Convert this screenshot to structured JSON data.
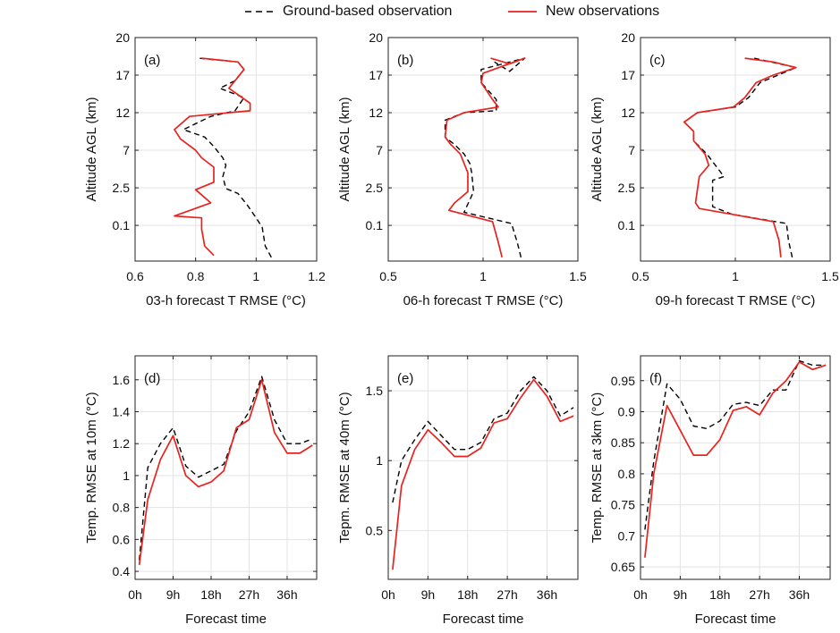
{
  "legend": {
    "ground_label": "Ground-based observation",
    "new_label": "New observations",
    "ground_color": "#000000",
    "new_color": "#e8231f"
  },
  "chart_data": [
    {
      "type": "line",
      "panel": "(a)",
      "orientation": "vertical-profile",
      "xlabel": "03-h forecast T RMSE (°C)",
      "ylabel": "Altitude AGL (km)",
      "xlim": [
        0.6,
        1.2
      ],
      "xticks": [
        0.6,
        0.8,
        1,
        1.2
      ],
      "xtick_labels": [
        "0.6",
        "0.8",
        "1",
        "1.2"
      ],
      "yticks": [
        0,
        1,
        2,
        3,
        4,
        5
      ],
      "ytick_labels": [
        "0.1",
        "2.5",
        "7",
        "12",
        "17",
        "20"
      ],
      "ylim": [
        -0.95,
        5
      ],
      "series": [
        {
          "name": "Ground-based observation",
          "style": "dashed",
          "color": "#000000",
          "x": [
            1.05,
            1.03,
            1.02,
            1.0,
            0.97,
            0.94,
            0.9,
            0.89,
            0.9,
            0.89,
            0.86,
            0.83,
            0.76,
            0.85,
            0.93,
            0.96,
            0.88,
            0.93,
            0.96,
            0.94,
            0.81
          ],
          "y": [
            -0.85,
            -0.55,
            -0.05,
            0.2,
            0.55,
            0.85,
            0.98,
            1.3,
            1.6,
            1.8,
            2.1,
            2.35,
            2.55,
            2.9,
            3.05,
            3.4,
            3.65,
            3.85,
            4.15,
            4.35,
            4.45
          ]
        },
        {
          "name": "New observations",
          "style": "solid",
          "color": "#e8231f",
          "x": [
            0.86,
            0.83,
            0.82,
            0.82,
            0.73,
            0.85,
            0.8,
            0.86,
            0.86,
            0.82,
            0.8,
            0.75,
            0.73,
            0.78,
            0.98,
            0.98,
            0.91,
            0.93,
            0.96,
            0.94,
            0.82
          ],
          "y": [
            -0.8,
            -0.55,
            -0.1,
            0.2,
            0.25,
            0.6,
            0.95,
            1.15,
            1.55,
            1.8,
            2.0,
            2.3,
            2.55,
            2.9,
            3.05,
            3.25,
            3.65,
            3.85,
            4.15,
            4.35,
            4.45
          ]
        }
      ]
    },
    {
      "type": "line",
      "panel": "(b)",
      "orientation": "vertical-profile",
      "xlabel": "06-h forecast T RMSE (°C)",
      "ylabel": "Altitude AGL (km)",
      "xlim": [
        0.5,
        1.5
      ],
      "xticks": [
        0.5,
        1,
        1.5
      ],
      "xtick_labels": [
        "0.5",
        "1",
        "1.5"
      ],
      "yticks": [
        0,
        1,
        2,
        3,
        4,
        5
      ],
      "ytick_labels": [
        "0.1",
        "2.5",
        "7",
        "12",
        "17",
        "20"
      ],
      "ylim": [
        -0.95,
        5
      ],
      "series": [
        {
          "name": "Ground-based observation",
          "style": "dashed",
          "color": "#000000",
          "x": [
            1.2,
            1.18,
            1.15,
            0.9,
            0.95,
            0.94,
            0.93,
            0.9,
            0.85,
            0.8,
            0.8,
            0.9,
            1.07,
            1.07,
            0.99,
            0.99,
            1.22,
            1.14,
            1.06
          ],
          "y": [
            -0.85,
            -0.45,
            0.05,
            0.35,
            0.9,
            1.4,
            1.65,
            1.9,
            2.15,
            2.35,
            2.8,
            3.0,
            3.05,
            3.35,
            3.8,
            4.15,
            4.45,
            4.1,
            4.35
          ]
        },
        {
          "name": "New observations",
          "style": "solid",
          "color": "#e8231f",
          "x": [
            1.1,
            1.08,
            1.05,
            0.82,
            0.85,
            0.92,
            0.92,
            0.88,
            0.83,
            0.8,
            0.81,
            0.9,
            1.08,
            1.05,
            0.99,
            1.0,
            1.22,
            1.14,
            1.04
          ],
          "y": [
            -0.85,
            -0.45,
            0.1,
            0.4,
            0.6,
            0.9,
            1.4,
            1.9,
            2.15,
            2.35,
            2.8,
            3.0,
            3.15,
            3.35,
            3.8,
            4.05,
            4.45,
            4.3,
            4.45
          ]
        }
      ]
    },
    {
      "type": "line",
      "panel": "(c)",
      "orientation": "vertical-profile",
      "xlabel": "09-h forecast T RMSE (°C)",
      "ylabel": "Altitude AGL (km)",
      "xlim": [
        0.5,
        1.5
      ],
      "xticks": [
        0.5,
        1,
        1.5
      ],
      "xtick_labels": [
        "0.5",
        "1",
        "1.5"
      ],
      "yticks": [
        0,
        1,
        2,
        3,
        4,
        5
      ],
      "ytick_labels": [
        "0.1",
        "2.5",
        "7",
        "12",
        "17",
        "20"
      ],
      "ylim": [
        -0.95,
        5
      ],
      "series": [
        {
          "name": "Ground-based observation",
          "style": "dashed",
          "color": "#000000",
          "x": [
            1.3,
            1.28,
            1.27,
            0.98,
            0.88,
            0.88,
            0.94,
            0.85,
            0.78,
            0.78,
            0.73,
            0.8,
            1.0,
            1.07,
            1.13,
            1.32,
            1.1
          ],
          "y": [
            -0.85,
            -0.4,
            0.05,
            0.3,
            0.5,
            1.2,
            1.3,
            1.9,
            2.25,
            2.5,
            2.75,
            3.0,
            3.15,
            3.4,
            3.8,
            4.2,
            4.45
          ]
        },
        {
          "name": "New observations",
          "style": "solid",
          "color": "#e8231f",
          "x": [
            1.24,
            1.23,
            1.2,
            0.81,
            0.79,
            0.81,
            0.86,
            0.84,
            0.78,
            0.78,
            0.73,
            0.8,
            0.99,
            1.05,
            1.11,
            1.2,
            1.32,
            1.2,
            1.05
          ],
          "y": [
            -0.85,
            -0.4,
            0.1,
            0.45,
            0.6,
            1.3,
            1.6,
            1.9,
            2.25,
            2.5,
            2.75,
            3.0,
            3.15,
            3.4,
            3.8,
            4.0,
            4.2,
            4.35,
            4.45
          ]
        }
      ]
    },
    {
      "type": "line",
      "panel": "(d)",
      "xlabel": "Forecast time",
      "ylabel": "Temp. RMSE at 10m (°C)",
      "xlim": [
        0,
        43
      ],
      "xticks": [
        0,
        9,
        18,
        27,
        36
      ],
      "xtick_labels": [
        "0h",
        "9h",
        "18h",
        "27h",
        "36h"
      ],
      "ylim": [
        0.35,
        1.75
      ],
      "yticks": [
        0.4,
        0.6,
        0.8,
        1.0,
        1.2,
        1.4,
        1.6
      ],
      "ytick_labels": [
        "0.4",
        "0.6",
        "0.8",
        "1",
        "1.2",
        "1.4",
        "1.6"
      ],
      "series": [
        {
          "name": "Ground-based observation",
          "style": "dashed",
          "color": "#000000",
          "x": [
            1,
            3,
            6,
            9,
            12,
            15,
            18,
            21,
            24,
            27,
            30,
            33,
            36,
            39,
            42
          ],
          "y": [
            0.47,
            1.05,
            1.2,
            1.3,
            1.06,
            0.99,
            1.03,
            1.07,
            1.28,
            1.4,
            1.62,
            1.35,
            1.2,
            1.2,
            1.23
          ]
        },
        {
          "name": "New observations",
          "style": "solid",
          "color": "#e8231f",
          "x": [
            1,
            3,
            6,
            9,
            12,
            15,
            18,
            21,
            24,
            27,
            30,
            33,
            36,
            39,
            42
          ],
          "y": [
            0.44,
            0.85,
            1.1,
            1.25,
            1.0,
            0.93,
            0.96,
            1.03,
            1.3,
            1.35,
            1.6,
            1.27,
            1.14,
            1.14,
            1.19
          ]
        }
      ]
    },
    {
      "type": "line",
      "panel": "(e)",
      "xlabel": "Forecast time",
      "ylabel": "Tepm. RMSE at 40m (°C)",
      "xlim": [
        0,
        43
      ],
      "xticks": [
        0,
        9,
        18,
        27,
        36
      ],
      "xtick_labels": [
        "0h",
        "9h",
        "18h",
        "27h",
        "36h"
      ],
      "ylim": [
        0.15,
        1.75
      ],
      "yticks": [
        0.5,
        1.0,
        1.5
      ],
      "ytick_labels": [
        "0.5",
        "1",
        "1.5"
      ],
      "series": [
        {
          "name": "Ground-based observation",
          "style": "dashed",
          "color": "#000000",
          "x": [
            1,
            3,
            6,
            9,
            12,
            15,
            18,
            21,
            24,
            27,
            30,
            33,
            36,
            39,
            42
          ],
          "y": [
            0.7,
            1.0,
            1.15,
            1.28,
            1.18,
            1.08,
            1.08,
            1.13,
            1.3,
            1.34,
            1.5,
            1.6,
            1.5,
            1.32,
            1.38
          ]
        },
        {
          "name": "New observations",
          "style": "solid",
          "color": "#e8231f",
          "x": [
            1,
            3,
            6,
            9,
            12,
            15,
            18,
            21,
            24,
            27,
            30,
            33,
            36,
            39,
            42
          ],
          "y": [
            0.22,
            0.82,
            1.08,
            1.22,
            1.13,
            1.03,
            1.03,
            1.09,
            1.27,
            1.3,
            1.45,
            1.58,
            1.46,
            1.28,
            1.32
          ]
        }
      ]
    },
    {
      "type": "line",
      "panel": "(f)",
      "xlabel": "Forecast time",
      "ylabel": "Temp. RMSE at 3km (°C)",
      "xlim": [
        0,
        43
      ],
      "xticks": [
        0,
        9,
        18,
        27,
        36
      ],
      "xtick_labels": [
        "0h",
        "9h",
        "18h",
        "27h",
        "36h"
      ],
      "ylim": [
        0.63,
        0.99
      ],
      "yticks": [
        0.65,
        0.7,
        0.75,
        0.8,
        0.85,
        0.9,
        0.95
      ],
      "ytick_labels": [
        "0.65",
        "0.7",
        "0.75",
        "0.8",
        "0.85",
        "0.9",
        "0.95"
      ],
      "series": [
        {
          "name": "Ground-based observation",
          "style": "dashed",
          "color": "#000000",
          "x": [
            1,
            3,
            6,
            9,
            12,
            15,
            18,
            21,
            24,
            27,
            30,
            33,
            36,
            39,
            42
          ],
          "y": [
            0.71,
            0.82,
            0.945,
            0.92,
            0.877,
            0.873,
            0.885,
            0.912,
            0.915,
            0.91,
            0.935,
            0.935,
            0.982,
            0.975,
            0.975
          ]
        },
        {
          "name": "New observations",
          "style": "solid",
          "color": "#e8231f",
          "x": [
            1,
            3,
            6,
            9,
            12,
            15,
            18,
            21,
            24,
            27,
            30,
            33,
            36,
            39,
            42
          ],
          "y": [
            0.665,
            0.8,
            0.91,
            0.87,
            0.83,
            0.83,
            0.855,
            0.902,
            0.908,
            0.895,
            0.93,
            0.95,
            0.98,
            0.968,
            0.975
          ]
        }
      ]
    }
  ]
}
